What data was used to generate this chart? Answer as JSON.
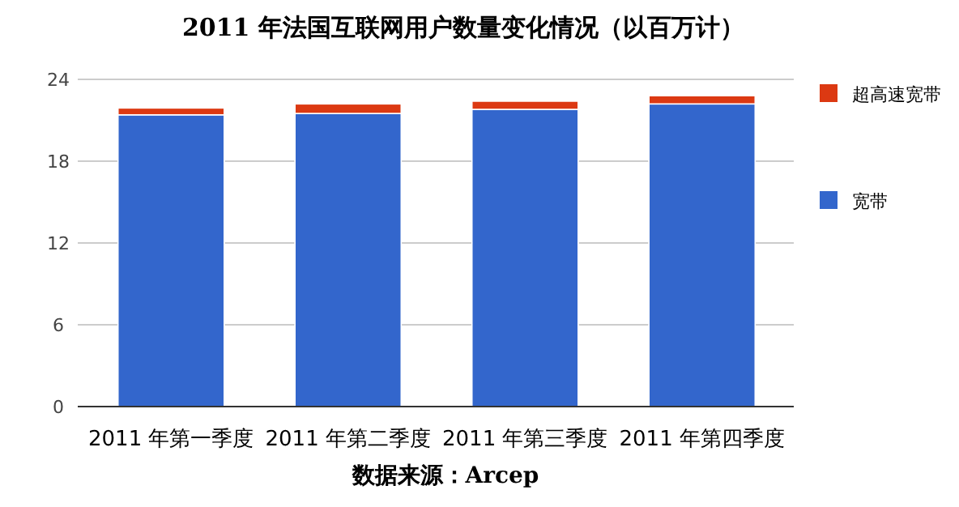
{
  "chart_data": {
    "type": "bar",
    "title": "2011 年法国互联网用户数量变化情况（以百万计）",
    "categories": [
      "2011 年第一季度",
      "2011 年第二季度",
      "2011 年第三季度",
      "2011 年第四季度"
    ],
    "series": [
      {
        "name": "宽带",
        "color": "#3366cc",
        "values": [
          21.4,
          21.5,
          21.8,
          22.2
        ]
      },
      {
        "name": "超高速宽带",
        "color": "#dc3912",
        "values": [
          0.5,
          0.7,
          0.6,
          0.6
        ]
      }
    ],
    "stacked": true,
    "ylim": [
      0,
      24
    ],
    "yticks": [
      0,
      6,
      12,
      18,
      24
    ],
    "grid": "y",
    "legend": "right",
    "annotations": [
      "数据来源：Arcep"
    ]
  }
}
